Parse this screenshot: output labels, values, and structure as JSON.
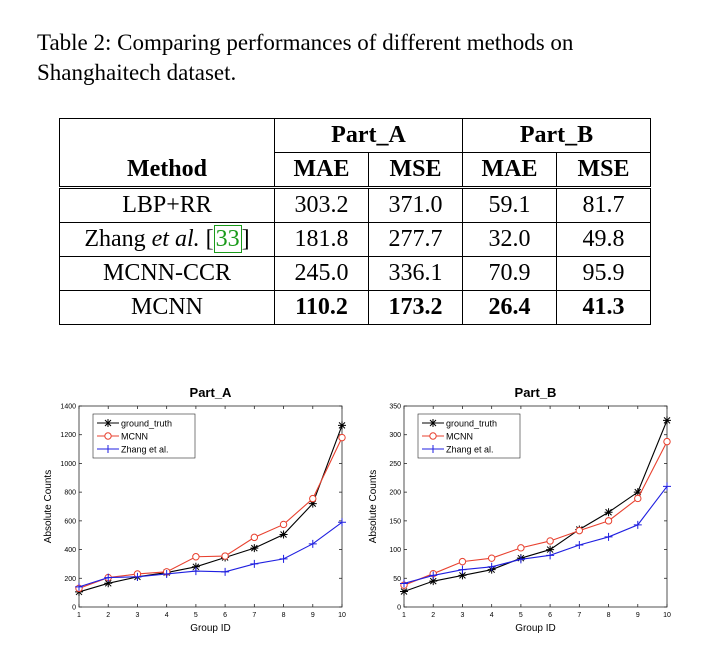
{
  "caption": "Table 2: Comparing performances of different methods on Shanghaitech dataset.",
  "table": {
    "group_headers": [
      "Part_A",
      "Part_B"
    ],
    "method_header": "Method",
    "metric_headers": [
      "MAE",
      "MSE",
      "MAE",
      "MSE"
    ],
    "rows": [
      {
        "method": "LBP+RR",
        "values": [
          "303.2",
          "371.0",
          "59.1",
          "81.7"
        ],
        "bold": false
      },
      {
        "method_prefix": "Zhang ",
        "method_italic": "et al.",
        "method_cite": "33",
        "values": [
          "181.8",
          "277.7",
          "32.0",
          "49.8"
        ],
        "bold": false
      },
      {
        "method": "MCNN-CCR",
        "values": [
          "245.0",
          "336.1",
          "70.9",
          "95.9"
        ],
        "bold": false
      },
      {
        "method": "MCNN",
        "values": [
          "110.2",
          "173.2",
          "26.4",
          "41.3"
        ],
        "bold": true
      }
    ]
  },
  "chart_data": [
    {
      "type": "line",
      "title": "Part_A",
      "xlabel": "Group ID",
      "ylabel": "Absolute Counts",
      "xlim": [
        1,
        10
      ],
      "ylim": [
        0,
        1400
      ],
      "xticks": [
        1,
        2,
        3,
        4,
        5,
        6,
        7,
        8,
        9,
        10
      ],
      "yticks": [
        0,
        200,
        400,
        600,
        800,
        1000,
        1200,
        1400
      ],
      "grid": false,
      "legend_position": "top-left",
      "x": [
        1,
        2,
        3,
        4,
        5,
        6,
        7,
        8,
        9,
        10
      ],
      "series": [
        {
          "name": "ground_truth",
          "color": "#000000",
          "marker": "asterisk",
          "values": [
            105,
            165,
            210,
            240,
            280,
            345,
            410,
            505,
            720,
            1265
          ]
        },
        {
          "name": "MCNN",
          "color": "#e8412f",
          "marker": "circle",
          "values": [
            130,
            205,
            230,
            245,
            350,
            355,
            485,
            575,
            755,
            1180
          ]
        },
        {
          "name": "Zhang et al.",
          "color": "#1f1fe0",
          "marker": "plus",
          "values": [
            140,
            205,
            210,
            230,
            250,
            245,
            300,
            335,
            440,
            590
          ]
        }
      ]
    },
    {
      "type": "line",
      "title": "Part_B",
      "xlabel": "Group ID",
      "ylabel": "Absolute Counts",
      "xlim": [
        1,
        10
      ],
      "ylim": [
        0,
        350
      ],
      "xticks": [
        1,
        2,
        3,
        4,
        5,
        6,
        7,
        8,
        9,
        10
      ],
      "yticks": [
        0,
        50,
        100,
        150,
        200,
        250,
        300,
        350
      ],
      "grid": false,
      "legend_position": "top-left",
      "x": [
        1,
        2,
        3,
        4,
        5,
        6,
        7,
        8,
        9,
        10
      ],
      "series": [
        {
          "name": "ground_truth",
          "color": "#000000",
          "marker": "asterisk",
          "values": [
            27,
            45,
            55,
            65,
            85,
            100,
            135,
            165,
            200,
            325
          ]
        },
        {
          "name": "MCNN",
          "color": "#e8412f",
          "marker": "circle",
          "values": [
            38,
            58,
            79,
            85,
            103,
            115,
            133,
            150,
            189,
            288
          ]
        },
        {
          "name": "Zhang et al.",
          "color": "#1f1fe0",
          "marker": "plus",
          "values": [
            41,
            55,
            65,
            70,
            83,
            90,
            108,
            122,
            143,
            210
          ]
        }
      ]
    }
  ]
}
